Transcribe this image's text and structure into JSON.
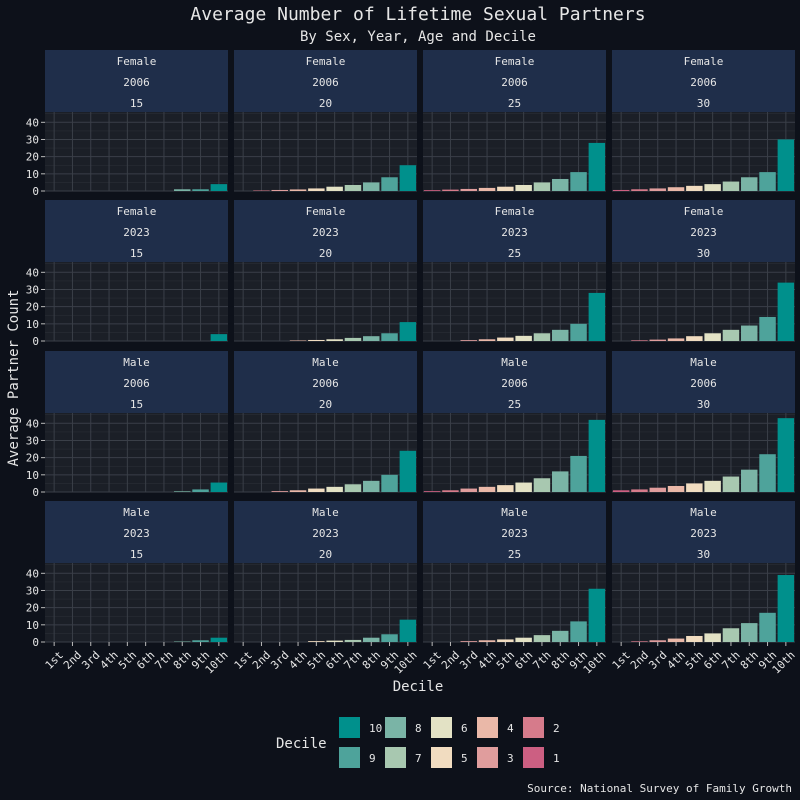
{
  "chart_data": {
    "type": "bar",
    "title": "Average Number of Lifetime Sexual Partners",
    "subtitle": "By Sex, Year, Age and Decile",
    "xlabel": "Decile",
    "ylabel": "Average Partner Count",
    "caption": "Source: National Survey of Family Growth",
    "categories": [
      "1st",
      "2nd",
      "3rd",
      "4th",
      "5th",
      "6th",
      "7th",
      "8th",
      "9th",
      "10th"
    ],
    "y_ticks": [
      "0",
      "10",
      "20",
      "30",
      "40"
    ],
    "ylim": [
      0,
      46
    ],
    "grid": true,
    "legend": {
      "title": "Decile",
      "placement": "bottom",
      "items": [
        {
          "label": "10",
          "color": "#00908c"
        },
        {
          "label": "9",
          "color": "#4ea39b"
        },
        {
          "label": "8",
          "color": "#7ab4a6"
        },
        {
          "label": "7",
          "color": "#a8c8b0"
        },
        {
          "label": "6",
          "color": "#e3e2c5"
        },
        {
          "label": "5",
          "color": "#f1dcc0"
        },
        {
          "label": "4",
          "color": "#eab8a8"
        },
        {
          "label": "3",
          "color": "#e09d9d"
        },
        {
          "label": "2",
          "color": "#d67b8b"
        },
        {
          "label": "1",
          "color": "#cc5f82"
        }
      ]
    },
    "panels": [
      {
        "sex": "Female",
        "year": "2006",
        "age": "15",
        "values": [
          0,
          0,
          0,
          0,
          0,
          0,
          0,
          1,
          1,
          4
        ]
      },
      {
        "sex": "Female",
        "year": "2006",
        "age": "20",
        "values": [
          0,
          0.3,
          0.6,
          0.9,
          1.5,
          2.5,
          3.5,
          5,
          8,
          15
        ]
      },
      {
        "sex": "Female",
        "year": "2006",
        "age": "25",
        "values": [
          0.5,
          0.8,
          1.2,
          1.8,
          2.5,
          3.5,
          5,
          7,
          11,
          28
        ]
      },
      {
        "sex": "Female",
        "year": "2006",
        "age": "30",
        "values": [
          0.6,
          1,
          1.5,
          2.2,
          3,
          4,
          5.5,
          8,
          11,
          30
        ]
      },
      {
        "sex": "Female",
        "year": "2023",
        "age": "15",
        "values": [
          0,
          0,
          0,
          0,
          0,
          0,
          0,
          0,
          0,
          4
        ]
      },
      {
        "sex": "Female",
        "year": "2023",
        "age": "20",
        "values": [
          0,
          0,
          0,
          0.3,
          0.6,
          1,
          1.8,
          2.8,
          4.5,
          11
        ]
      },
      {
        "sex": "Female",
        "year": "2023",
        "age": "25",
        "values": [
          0,
          0,
          0.5,
          1,
          2,
          3,
          4.5,
          6.5,
          10,
          28
        ]
      },
      {
        "sex": "Female",
        "year": "2023",
        "age": "30",
        "values": [
          0,
          0.4,
          0.8,
          1.5,
          2.8,
          4.5,
          6.5,
          9,
          14,
          34
        ]
      },
      {
        "sex": "Male",
        "year": "2006",
        "age": "15",
        "values": [
          0,
          0,
          0,
          0,
          0,
          0,
          0,
          0.4,
          1.5,
          5.5
        ]
      },
      {
        "sex": "Male",
        "year": "2006",
        "age": "20",
        "values": [
          0,
          0,
          0.5,
          1,
          2,
          3,
          4.5,
          6.5,
          10,
          24
        ]
      },
      {
        "sex": "Male",
        "year": "2006",
        "age": "25",
        "values": [
          0.5,
          1,
          2,
          3,
          4,
          5.5,
          8,
          12,
          21,
          42
        ]
      },
      {
        "sex": "Male",
        "year": "2006",
        "age": "30",
        "values": [
          1,
          1.5,
          2.5,
          3.5,
          5,
          6.5,
          9,
          13,
          22,
          43
        ]
      },
      {
        "sex": "Male",
        "year": "2023",
        "age": "15",
        "values": [
          0,
          0,
          0,
          0,
          0,
          0,
          0,
          0.3,
          1,
          2.5
        ]
      },
      {
        "sex": "Male",
        "year": "2023",
        "age": "20",
        "values": [
          0,
          0,
          0,
          0,
          0.5,
          0.8,
          1.2,
          2.5,
          4.5,
          13
        ]
      },
      {
        "sex": "Male",
        "year": "2023",
        "age": "25",
        "values": [
          0,
          0,
          0.5,
          1,
          1.5,
          2.5,
          4,
          6.5,
          12,
          31
        ]
      },
      {
        "sex": "Male",
        "year": "2023",
        "age": "30",
        "values": [
          0,
          0.4,
          1,
          2,
          3.5,
          5,
          8,
          11,
          17,
          39
        ]
      }
    ]
  }
}
